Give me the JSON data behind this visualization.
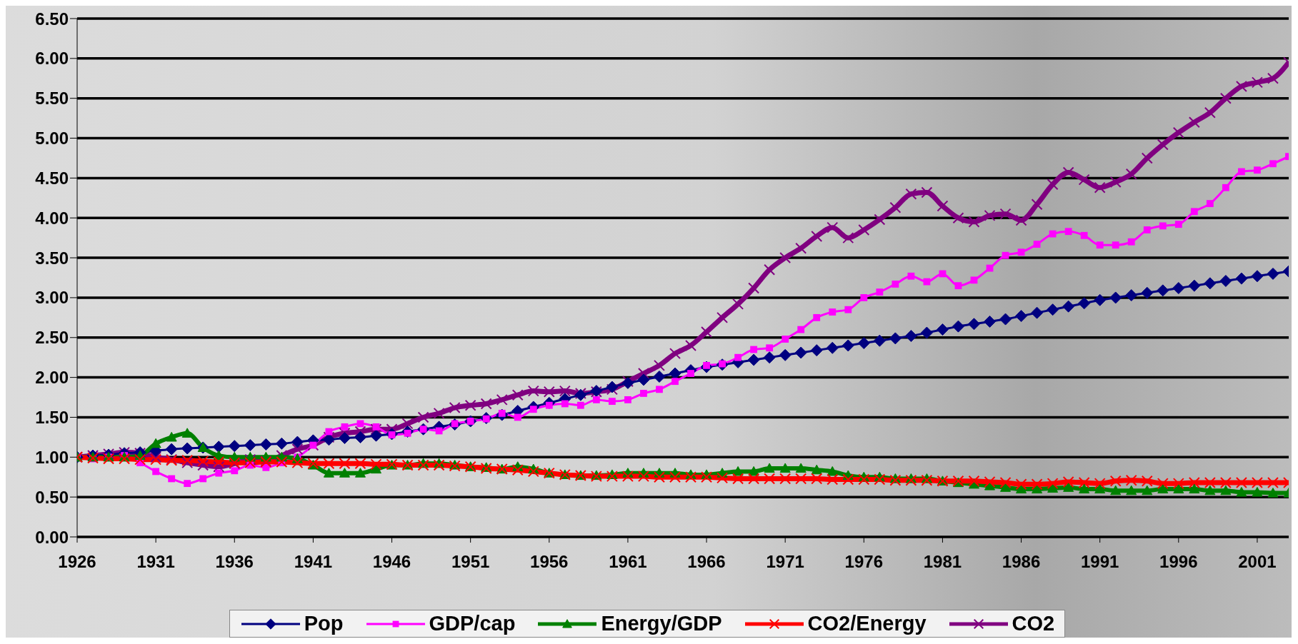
{
  "chart_data": {
    "type": "line",
    "categories": [
      "1926",
      null,
      null,
      null,
      null,
      "1931",
      null,
      null,
      null,
      null,
      "1936",
      null,
      null,
      null,
      null,
      "1941",
      null,
      null,
      null,
      null,
      "1946",
      null,
      null,
      null,
      null,
      "1951",
      null,
      null,
      null,
      null,
      "1956",
      null,
      null,
      null,
      null,
      "1961",
      null,
      null,
      null,
      null,
      "1966",
      null,
      null,
      null,
      null,
      "1971",
      null,
      null,
      null,
      null,
      "1976",
      null,
      null,
      null,
      null,
      "1981",
      null,
      null,
      null,
      null,
      "1986",
      null,
      null,
      null,
      null,
      "1991",
      null,
      null,
      null,
      null,
      "1996",
      null,
      null,
      null,
      null,
      "2001",
      null,
      null
    ],
    "ylim": [
      0,
      6.5
    ],
    "yticks": [
      {
        "value": 0,
        "label": "0.00"
      },
      {
        "value": 0.5,
        "label": "0.50"
      },
      {
        "value": 1,
        "label": "1.00"
      },
      {
        "value": 1.5,
        "label": "1.50"
      },
      {
        "value": 2,
        "label": "2.00"
      },
      {
        "value": 2.5,
        "label": "2.50"
      },
      {
        "value": 3,
        "label": "3.00"
      },
      {
        "value": 3.5,
        "label": "3.50"
      },
      {
        "value": 4,
        "label": "4.00"
      },
      {
        "value": 4.5,
        "label": "4.50"
      },
      {
        "value": 5,
        "label": "5.00"
      },
      {
        "value": 5.5,
        "label": "5.50"
      },
      {
        "value": 6,
        "label": "6.00"
      },
      {
        "value": 6.5,
        "label": "6.50"
      }
    ],
    "grid": "y",
    "legend": "bottom",
    "series": [
      {
        "name": "Pop",
        "color": "#000080",
        "marker": "diamond",
        "values": [
          1.0,
          1.02,
          1.03,
          1.05,
          1.06,
          1.08,
          1.1,
          1.11,
          1.12,
          1.13,
          1.14,
          1.15,
          1.16,
          1.17,
          1.19,
          1.21,
          1.22,
          1.24,
          1.25,
          1.27,
          1.29,
          1.32,
          1.35,
          1.38,
          1.41,
          1.45,
          1.49,
          1.53,
          1.58,
          1.63,
          1.68,
          1.73,
          1.78,
          1.83,
          1.88,
          1.93,
          1.97,
          2.01,
          2.05,
          2.09,
          2.13,
          2.16,
          2.19,
          2.22,
          2.25,
          2.28,
          2.31,
          2.34,
          2.37,
          2.4,
          2.43,
          2.46,
          2.49,
          2.52,
          2.56,
          2.6,
          2.64,
          2.67,
          2.7,
          2.73,
          2.77,
          2.81,
          2.85,
          2.89,
          2.93,
          2.97,
          3.0,
          3.03,
          3.06,
          3.09,
          3.12,
          3.15,
          3.18,
          3.21,
          3.24,
          3.27,
          3.3,
          3.33
        ]
      },
      {
        "name": "GDP/cap",
        "color": "#ff00ff",
        "marker": "square",
        "values": [
          1.0,
          0.98,
          1.0,
          1.02,
          0.93,
          0.82,
          0.73,
          0.67,
          0.73,
          0.8,
          0.83,
          0.9,
          0.87,
          0.93,
          1.0,
          1.15,
          1.32,
          1.38,
          1.42,
          1.38,
          1.28,
          1.3,
          1.35,
          1.33,
          1.42,
          1.45,
          1.48,
          1.55,
          1.5,
          1.6,
          1.65,
          1.67,
          1.65,
          1.72,
          1.7,
          1.72,
          1.8,
          1.85,
          1.95,
          2.05,
          2.15,
          2.17,
          2.25,
          2.35,
          2.37,
          2.48,
          2.6,
          2.75,
          2.82,
          2.85,
          3.0,
          3.07,
          3.17,
          3.27,
          3.2,
          3.3,
          3.15,
          3.22,
          3.37,
          3.53,
          3.57,
          3.67,
          3.8,
          3.83,
          3.78,
          3.66,
          3.66,
          3.7,
          3.85,
          3.9,
          3.92,
          4.08,
          4.18,
          4.38,
          4.58,
          4.6,
          4.68,
          4.77
        ]
      },
      {
        "name": "Energy/GDP",
        "color": "#008000",
        "marker": "triangle",
        "values": [
          1.0,
          1.0,
          1.0,
          1.0,
          1.02,
          1.17,
          1.25,
          1.3,
          1.12,
          1.02,
          1.0,
          1.0,
          1.0,
          1.0,
          0.98,
          0.9,
          0.8,
          0.8,
          0.8,
          0.85,
          0.9,
          0.9,
          0.92,
          0.92,
          0.9,
          0.88,
          0.87,
          0.85,
          0.88,
          0.85,
          0.8,
          0.78,
          0.77,
          0.77,
          0.78,
          0.8,
          0.8,
          0.8,
          0.8,
          0.78,
          0.78,
          0.8,
          0.82,
          0.82,
          0.86,
          0.86,
          0.86,
          0.84,
          0.82,
          0.77,
          0.75,
          0.75,
          0.73,
          0.73,
          0.73,
          0.7,
          0.68,
          0.66,
          0.64,
          0.62,
          0.6,
          0.6,
          0.61,
          0.62,
          0.6,
          0.6,
          0.58,
          0.58,
          0.58,
          0.6,
          0.6,
          0.6,
          0.58,
          0.58,
          0.56,
          0.56,
          0.55,
          0.55
        ]
      },
      {
        "name": "CO2/Energy",
        "color": "#ff0000",
        "marker": "cross",
        "values": [
          1.0,
          0.99,
          0.98,
          0.98,
          0.97,
          0.97,
          0.96,
          0.96,
          0.95,
          0.94,
          0.93,
          0.93,
          0.94,
          0.94,
          0.93,
          0.92,
          0.92,
          0.92,
          0.92,
          0.91,
          0.91,
          0.9,
          0.9,
          0.9,
          0.89,
          0.88,
          0.86,
          0.85,
          0.84,
          0.82,
          0.8,
          0.78,
          0.77,
          0.76,
          0.76,
          0.76,
          0.76,
          0.75,
          0.75,
          0.75,
          0.75,
          0.74,
          0.73,
          0.73,
          0.73,
          0.73,
          0.73,
          0.73,
          0.72,
          0.72,
          0.72,
          0.72,
          0.71,
          0.71,
          0.71,
          0.7,
          0.7,
          0.7,
          0.69,
          0.68,
          0.66,
          0.66,
          0.67,
          0.69,
          0.68,
          0.67,
          0.7,
          0.71,
          0.7,
          0.67,
          0.67,
          0.68,
          0.68,
          0.68,
          0.68,
          0.68,
          0.68,
          0.68
        ]
      },
      {
        "name": "CO2",
        "color": "#800080",
        "marker": "cross",
        "values": [
          1.0,
          1.02,
          1.04,
          1.06,
          1.05,
          1.0,
          0.97,
          0.93,
          0.9,
          0.88,
          0.92,
          0.97,
          0.95,
          1.02,
          1.1,
          1.15,
          1.25,
          1.3,
          1.32,
          1.35,
          1.35,
          1.42,
          1.5,
          1.55,
          1.62,
          1.65,
          1.67,
          1.72,
          1.78,
          1.83,
          1.82,
          1.83,
          1.8,
          1.82,
          1.85,
          1.95,
          2.05,
          2.15,
          2.3,
          2.4,
          2.57,
          2.75,
          2.92,
          3.12,
          3.35,
          3.5,
          3.62,
          3.77,
          3.88,
          3.75,
          3.85,
          3.98,
          4.13,
          4.3,
          4.32,
          4.15,
          4.0,
          3.95,
          4.03,
          4.05,
          3.97,
          4.17,
          4.42,
          4.57,
          4.48,
          4.38,
          4.45,
          4.55,
          4.75,
          4.92,
          5.07,
          5.2,
          5.32,
          5.5,
          5.65,
          5.7,
          5.75,
          5.95
        ]
      }
    ]
  }
}
